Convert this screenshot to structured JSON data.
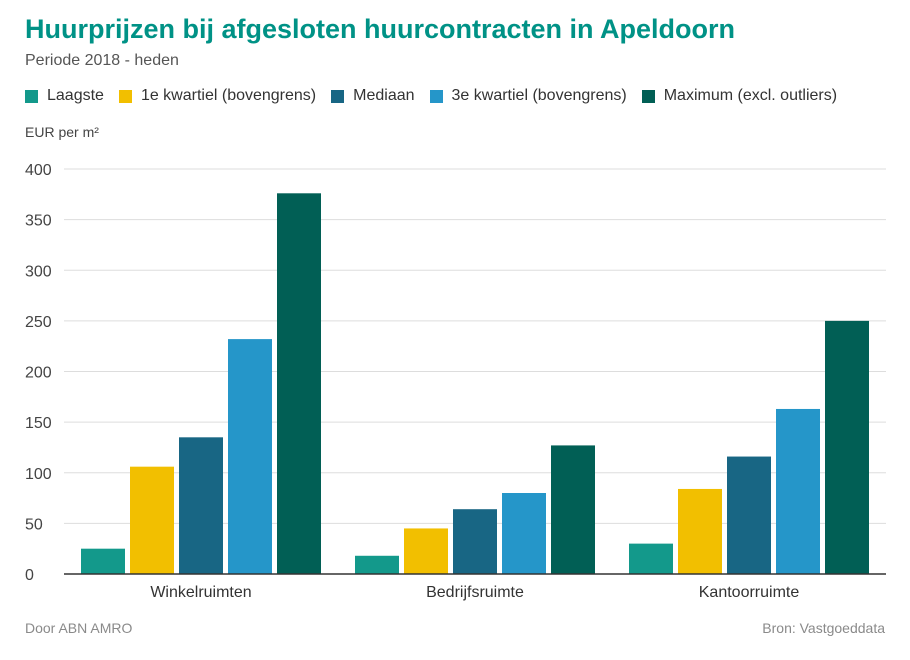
{
  "chart_data": {
    "type": "bar",
    "title": "Huurprijzen bij afgesloten huurcontracten in Apeldoorn",
    "subtitle": "Periode 2018 - heden",
    "ylabel": "EUR per m²",
    "xlabel": "",
    "ylim": [
      0,
      400
    ],
    "yticks": [
      0,
      50,
      100,
      150,
      200,
      250,
      300,
      350,
      400
    ],
    "grid": true,
    "legend_position": "top",
    "categories": [
      "Winkelruimten",
      "Bedrijfsruimte",
      "Kantoorruimte"
    ],
    "series": [
      {
        "name": "Laagste",
        "color": "#13998b",
        "values": [
          25,
          18,
          30
        ]
      },
      {
        "name": "1e kwartiel (bovengrens)",
        "color": "#f2bf00",
        "values": [
          106,
          45,
          84
        ]
      },
      {
        "name": "Mediaan",
        "color": "#186684",
        "values": [
          135,
          64,
          116
        ]
      },
      {
        "name": "3e kwartiel (bovengrens)",
        "color": "#2596c9",
        "values": [
          232,
          80,
          163
        ]
      },
      {
        "name": "Maximum (excl. outliers)",
        "color": "#015f55",
        "values": [
          376,
          127,
          250
        ]
      }
    ]
  },
  "footer": {
    "left": "Door ABN AMRO",
    "right": "Bron: Vastgoeddata"
  }
}
